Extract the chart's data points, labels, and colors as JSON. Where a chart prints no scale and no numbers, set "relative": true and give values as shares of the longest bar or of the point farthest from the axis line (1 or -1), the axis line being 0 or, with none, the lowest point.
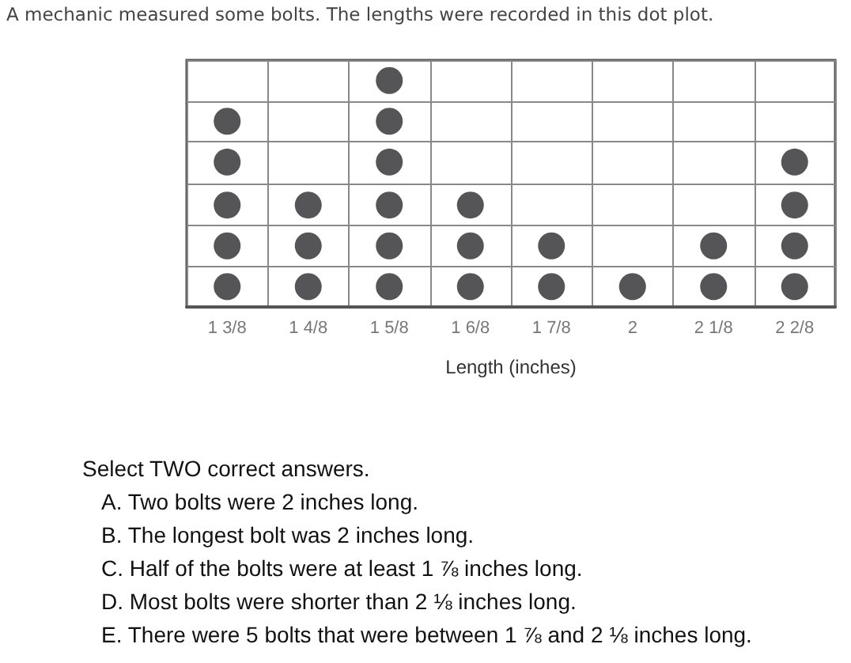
{
  "chart_data": {
    "type": "scatter",
    "title": "A mechanic measured some bolts. The lengths were recorded in this dot plot.",
    "xlabel": "Length (inches)",
    "categories": [
      "1 3/8",
      "1 4/8",
      "1 5/8",
      "1 6/8",
      "1 7/8",
      "2",
      "2 1/8",
      "2 2/8"
    ],
    "series": [
      {
        "color": "#2b2b2e",
        "x": [
          "1 3/8",
          "1 3/8",
          "1 3/8",
          "1 3/8",
          "1 3/8",
          "1 4/8",
          "1 4/8",
          "1 4/8",
          "1 5/8",
          "1 5/8",
          "1 5/8",
          "1 5/8",
          "1 5/8",
          "1 5/8",
          "1 6/8",
          "1 6/8",
          "1 6/8",
          "1 7/8",
          "1 7/8",
          "2",
          "2 1/8",
          "2 1/8",
          "2 2/8",
          "2 2/8",
          "2 2/8",
          "2 2/8"
        ],
        "values": [
          0.09,
          0.27,
          0.45,
          0.64,
          0.82,
          0.09,
          0.27,
          0.45,
          0.09,
          0.27,
          0.45,
          0.64,
          0.82,
          1,
          0.09,
          0.27,
          0.45,
          0.09,
          0.27,
          0.09,
          0.09,
          0.27,
          0.09,
          0.27,
          0.45,
          0.64
        ]
      }
    ],
    "relative": true,
    "grid": true,
    "marker": "circle",
    "annotations": [
      "Select TWO correct answers.",
      "A.  Two bolts were 2 inches long.",
      "B.  The longest bolt was 2 inches long.",
      "C.  Half of the bolts were at least 1 ⅞ inches long.",
      "D.  Most bolts were shorter than 2 ⅛ inches long.",
      "E.  There were 5 bolts that were between 1 ⅞ and 2 ⅛ inches long."
    ]
  }
}
